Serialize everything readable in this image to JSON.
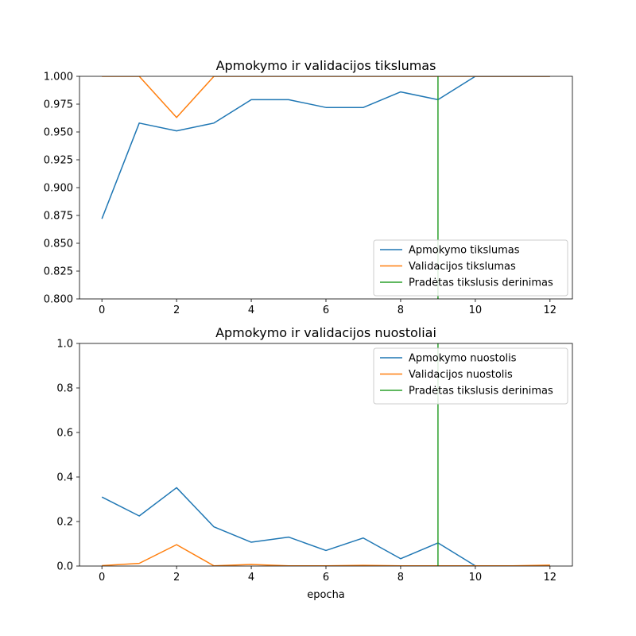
{
  "chart_data": [
    {
      "type": "line",
      "title": "Apmokymo ir validacijos tikslumas",
      "xlabel": "",
      "ylabel": "",
      "xlim": [
        -0.6,
        12.6
      ],
      "ylim": [
        0.8,
        1.0
      ],
      "xticks": [
        0,
        2,
        4,
        6,
        8,
        10,
        12
      ],
      "yticks": [
        0.8,
        0.825,
        0.85,
        0.875,
        0.9,
        0.925,
        0.95,
        0.975,
        1.0
      ],
      "ytick_labels": [
        "0.800",
        "0.825",
        "0.850",
        "0.875",
        "0.900",
        "0.925",
        "0.950",
        "0.975",
        "1.000"
      ],
      "legend_position": "lower-right",
      "series": [
        {
          "name": "Apmokymo tikslumas",
          "color": "#1f77b4",
          "x": [
            0,
            1,
            2,
            3,
            4,
            5,
            6,
            7,
            8,
            9,
            10,
            11,
            12
          ],
          "values": [
            0.872,
            0.958,
            0.951,
            0.958,
            0.979,
            0.979,
            0.972,
            0.972,
            0.986,
            0.979,
            1.0,
            1.0,
            1.0
          ]
        },
        {
          "name": "Validacijos tikslumas",
          "color": "#ff7f0e",
          "x": [
            0,
            1,
            2,
            3,
            4,
            5,
            6,
            7,
            8,
            9,
            10,
            11,
            12
          ],
          "values": [
            1.0,
            1.0,
            0.963,
            1.0,
            1.0,
            1.0,
            1.0,
            1.0,
            1.0,
            1.0,
            1.0,
            1.0,
            1.0
          ]
        }
      ],
      "vline": {
        "name": "Pradėtas tikslusis derinimas",
        "x": 9,
        "color": "#2ca02c"
      }
    },
    {
      "type": "line",
      "title": "Apmokymo ir validacijos nuostoliai",
      "xlabel": "epocha",
      "ylabel": "",
      "xlim": [
        -0.6,
        12.6
      ],
      "ylim": [
        0.0,
        1.0
      ],
      "xticks": [
        0,
        2,
        4,
        6,
        8,
        10,
        12
      ],
      "yticks": [
        0.0,
        0.2,
        0.4,
        0.6,
        0.8,
        1.0
      ],
      "ytick_labels": [
        "0.0",
        "0.2",
        "0.4",
        "0.6",
        "0.8",
        "1.0"
      ],
      "legend_position": "upper-right",
      "series": [
        {
          "name": "Apmokymo nuostolis",
          "color": "#1f77b4",
          "x": [
            0,
            1,
            2,
            3,
            4,
            5,
            6,
            7,
            8,
            9,
            10,
            11,
            12
          ],
          "values": [
            0.31,
            0.225,
            0.352,
            0.176,
            0.107,
            0.13,
            0.07,
            0.126,
            0.033,
            0.104,
            0.001,
            0.0,
            0.0
          ]
        },
        {
          "name": "Validacijos nuostolis",
          "color": "#ff7f0e",
          "x": [
            0,
            1,
            2,
            3,
            4,
            5,
            6,
            7,
            8,
            9,
            10,
            11,
            12
          ],
          "values": [
            0.002,
            0.012,
            0.096,
            0.001,
            0.007,
            0.001,
            0.001,
            0.003,
            0.001,
            0.001,
            0.001,
            0.001,
            0.004
          ]
        }
      ],
      "vline": {
        "name": "Pradėtas tikslusis derinimas",
        "x": 9,
        "color": "#2ca02c"
      }
    }
  ]
}
